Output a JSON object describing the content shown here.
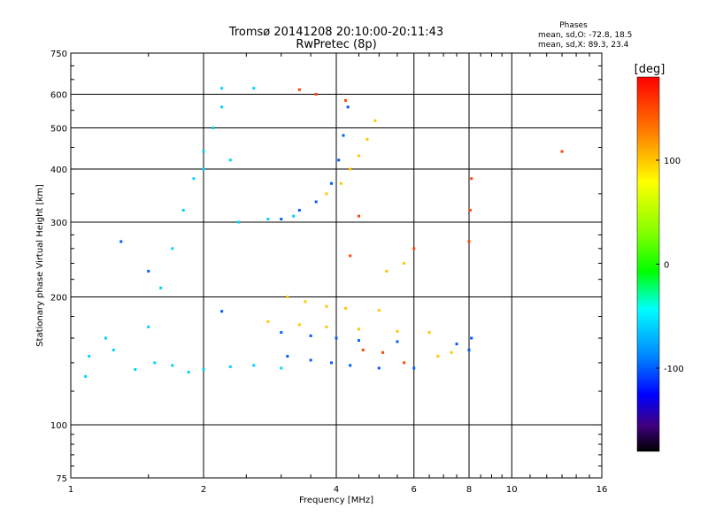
{
  "chart_data": {
    "type": "scatter",
    "title": "Tromsø 20141208 20:10:00-20:11:43",
    "subtitle": "RwPretec (8p)",
    "xlabel": "Frequency [MHz]",
    "ylabel": "Stationary phase Virtual Height [km]",
    "x_scale": "log",
    "y_scale": "log",
    "xlim": [
      1,
      16
    ],
    "ylim": [
      75,
      750
    ],
    "x_ticks": [
      1,
      2,
      4,
      6,
      8,
      10,
      16
    ],
    "y_ticks": [
      75,
      100,
      200,
      300,
      400,
      500,
      600,
      750
    ],
    "grid": true,
    "stats": {
      "title": "Phases",
      "line1": "mean, sd,O: -72.8, 18.5",
      "line2": "mean, sd,X: 89.3, 23.4"
    },
    "colorbar": {
      "label": "[deg]",
      "ticks": [
        100,
        0,
        -100
      ],
      "range": [
        -180,
        180
      ],
      "colormap": "rainbow"
    },
    "series": [
      {
        "color_value": -60,
        "points": [
          [
            1.25,
            150
          ],
          [
            1.4,
            135
          ],
          [
            1.55,
            140
          ],
          [
            1.7,
            138
          ],
          [
            1.85,
            133
          ],
          [
            2.0,
            135
          ],
          [
            2.3,
            137
          ],
          [
            2.6,
            138
          ],
          [
            3.0,
            136
          ],
          [
            1.5,
            170
          ],
          [
            1.6,
            210
          ],
          [
            1.7,
            260
          ],
          [
            1.8,
            320
          ],
          [
            1.9,
            380
          ],
          [
            2.0,
            440
          ],
          [
            2.1,
            500
          ],
          [
            2.2,
            560
          ],
          [
            2.2,
            620
          ],
          [
            2.6,
            620
          ],
          [
            2.4,
            300
          ],
          [
            2.8,
            305
          ],
          [
            3.2,
            310
          ],
          [
            2.0,
            400
          ],
          [
            2.3,
            420
          ],
          [
            1.08,
            130
          ],
          [
            1.1,
            145
          ],
          [
            1.2,
            160
          ]
        ]
      },
      {
        "color_value": -100,
        "points": [
          [
            3.0,
            305
          ],
          [
            3.3,
            320
          ],
          [
            3.6,
            335
          ],
          [
            3.9,
            370
          ],
          [
            4.05,
            420
          ],
          [
            4.15,
            480
          ],
          [
            4.25,
            560
          ],
          [
            3.1,
            145
          ],
          [
            3.5,
            142
          ],
          [
            3.9,
            140
          ],
          [
            4.3,
            138
          ],
          [
            5.0,
            136
          ],
          [
            6.0,
            136
          ],
          [
            3.0,
            165
          ],
          [
            3.5,
            162
          ],
          [
            4.0,
            160
          ],
          [
            4.5,
            158
          ],
          [
            5.5,
            157
          ],
          [
            7.5,
            155
          ],
          [
            8.0,
            150
          ],
          [
            8.1,
            160
          ],
          [
            1.3,
            270
          ],
          [
            1.5,
            230
          ],
          [
            2.2,
            185
          ]
        ]
      },
      {
        "color_value": 100,
        "points": [
          [
            3.8,
            350
          ],
          [
            4.1,
            370
          ],
          [
            4.3,
            400
          ],
          [
            4.5,
            430
          ],
          [
            4.7,
            470
          ],
          [
            4.9,
            520
          ],
          [
            3.1,
            200
          ],
          [
            3.4,
            195
          ],
          [
            3.8,
            190
          ],
          [
            4.2,
            188
          ],
          [
            5.0,
            186
          ],
          [
            2.8,
            175
          ],
          [
            3.3,
            172
          ],
          [
            3.8,
            170
          ],
          [
            4.5,
            168
          ],
          [
            5.5,
            166
          ],
          [
            6.5,
            165
          ],
          [
            6.8,
            145
          ],
          [
            7.3,
            148
          ],
          [
            5.2,
            230
          ],
          [
            5.7,
            240
          ]
        ]
      },
      {
        "color_value": 150,
        "points": [
          [
            3.3,
            615
          ],
          [
            3.6,
            600
          ],
          [
            4.2,
            580
          ],
          [
            4.6,
            150
          ],
          [
            5.1,
            148
          ],
          [
            5.7,
            140
          ],
          [
            6.0,
            260
          ],
          [
            8.0,
            270
          ],
          [
            8.05,
            320
          ],
          [
            8.1,
            380
          ],
          [
            13.0,
            440
          ],
          [
            4.5,
            310
          ],
          [
            4.3,
            250
          ]
        ]
      }
    ]
  }
}
